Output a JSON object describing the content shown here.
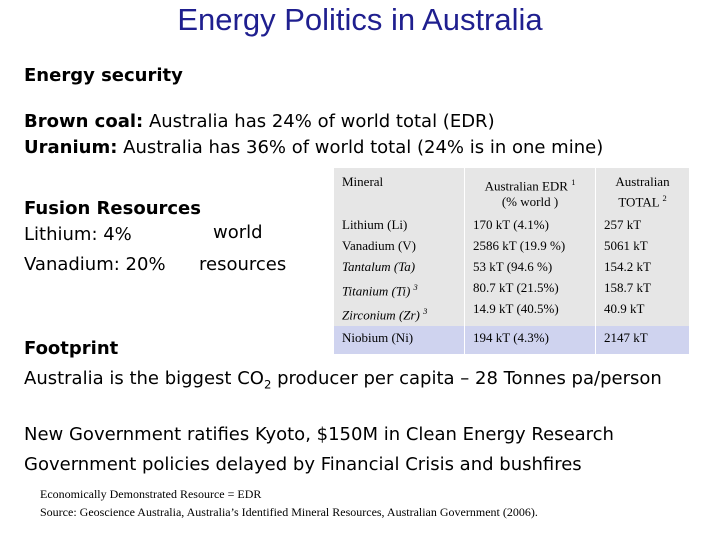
{
  "title": "Energy Politics in Australia",
  "energy_security": {
    "heading": "Energy security",
    "brown_coal_label": "Brown coal:",
    "brown_coal_text": " Australia has 24% of world total (EDR)",
    "uranium_label": "Uranium:",
    "uranium_text": " Australia has 36% of world total (24% is in one mine)"
  },
  "fusion": {
    "heading": "Fusion Resources",
    "lithium": "Lithium: 4%",
    "vanadium": "Vanadium: 20%",
    "world": "world",
    "resources": "resources"
  },
  "table": {
    "headers": {
      "mineral": "Mineral",
      "edr": "Australian EDR",
      "edr_sup": "1",
      "edr_sub": "(% world )",
      "total": "Australian",
      "total_sub": "TOTAL",
      "total_sup": "2"
    },
    "rows": [
      {
        "mineral": "Lithium (Li)",
        "edr": "170 kT (4.1%)",
        "total": "257 kT"
      },
      {
        "mineral": "Vanadium (V)",
        "edr": "2586 kT (19.9 %)",
        "total": "5061 kT"
      },
      {
        "mineral": "Tantalum (Ta)",
        "edr": "53 kT (94.6 %)",
        "total": "154.2 kT"
      },
      {
        "mineral": "Titanium (Ti)",
        "sup": "3",
        "edr": "80.7 kT (21.5%)",
        "total": "158.7 kT"
      },
      {
        "mineral": "Zirconium (Zr)",
        "sup": "3",
        "edr": "14.9 kT (40.5%)",
        "total": "40.9 kT"
      },
      {
        "mineral": "Niobium (Ni)",
        "edr": "194 kT (4.3%)",
        "total": "2147 kT"
      }
    ]
  },
  "footprint": {
    "heading": "Footprint",
    "text_before": "Australia is the biggest CO",
    "co2_sub": "2",
    "text_after": " producer per capita – 28 Tonnes pa/person"
  },
  "government": {
    "line1": "New Government ratifies Kyoto, $150M in Clean Energy Research",
    "line2": "Government policies delayed by Financial Crisis and bushfires"
  },
  "notes": {
    "edr": "Economically Demonstrated Resource = EDR",
    "source": "Source: Geoscience Australia, Australia’s Identified Mineral Resources, Australian Government (2006)."
  },
  "colors": {
    "title": "#1f1f8f",
    "table_grey": "#e6e6e6",
    "table_blue": "#cfd3ef"
  }
}
